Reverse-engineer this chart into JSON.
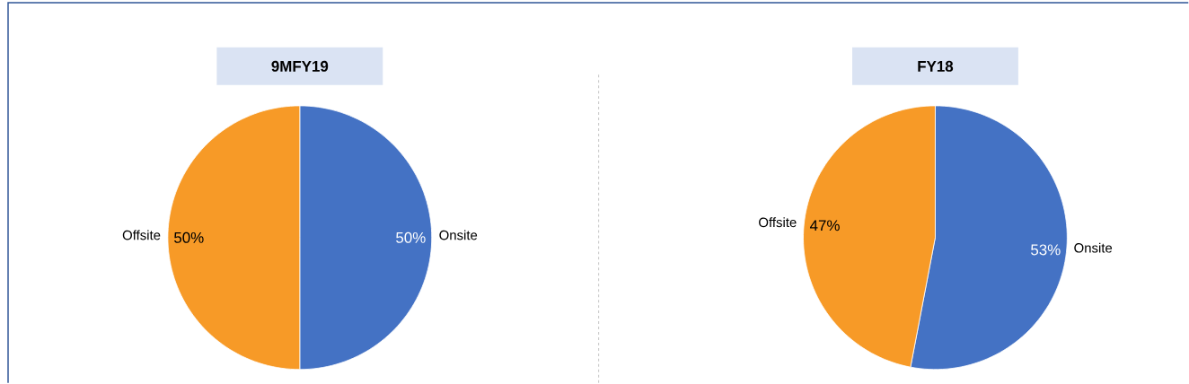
{
  "chart_data": [
    {
      "type": "pie",
      "title": "9MFY19",
      "categories": [
        "Onsite",
        "Offsite"
      ],
      "values": [
        50,
        50
      ],
      "colors": [
        "#4472c4",
        "#f79a27"
      ],
      "value_labels": [
        "50%",
        "50%"
      ]
    },
    {
      "type": "pie",
      "title": "FY18",
      "categories": [
        "Onsite",
        "Offsite"
      ],
      "values": [
        53,
        47
      ],
      "colors": [
        "#4472c4",
        "#f79a27"
      ],
      "value_labels": [
        "53%",
        "47%"
      ]
    }
  ]
}
